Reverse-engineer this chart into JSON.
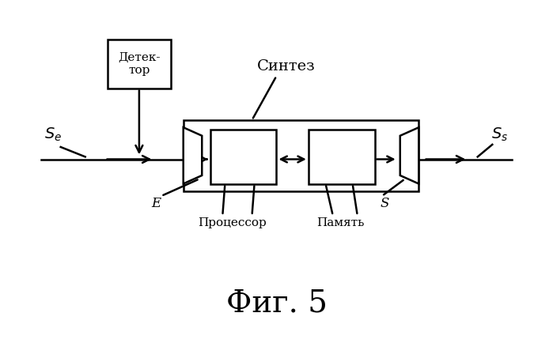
{
  "bg_color": "#ffffff",
  "fig_width": 6.99,
  "fig_height": 4.34,
  "dpi": 100,
  "title": "Фиг. 5",
  "label_Se": "$S_e$",
  "label_Ss": "$S_s$",
  "label_E": "E",
  "label_S": "S",
  "label_detector": "Детек-\nтор",
  "label_sintez": "Синтез",
  "label_processor": "Процессор",
  "label_memory": "Память"
}
